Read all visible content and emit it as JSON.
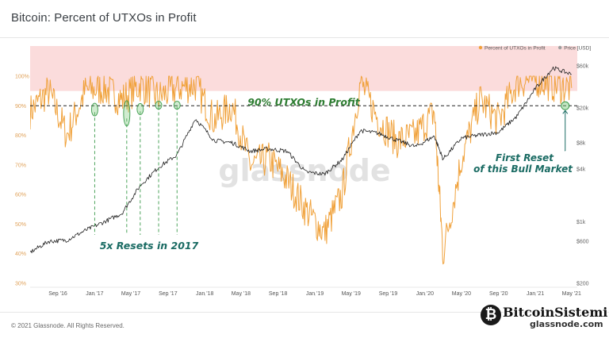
{
  "title": "Bitcoin: Percent of UTXOs in Profit",
  "copyright": "© 2021 Glassnode. All Rights Reserved.",
  "watermark": "glassnode",
  "badge": {
    "brand": "BitcoinSistemi",
    "sub": "glassnode.com",
    "icon": "bitcoin-logo-icon"
  },
  "colors": {
    "profit": "#f0a13a",
    "price": "#222222",
    "band": "#fbdcdc",
    "green": "#2e7d32",
    "teal": "#1a6b63"
  },
  "legend": [
    {
      "label": "Percent of UTXOs in Profit",
      "color": "#f0a13a"
    },
    {
      "label": "Price [USD]",
      "color": "#9e9e9e"
    }
  ],
  "annotations": {
    "threshold": "90% UTXOs in Profit",
    "resets": "5x Resets in 2017",
    "first_reset_line1": "First Reset",
    "first_reset_line2": "of this Bull Market"
  },
  "chart_data": {
    "type": "line",
    "title": "Bitcoin: Percent of UTXOs in Profit",
    "x_ticks": [
      "Sep '16",
      "Jan '17",
      "May '17",
      "Sep '17",
      "Jan '18",
      "May '18",
      "Sep '18",
      "Jan '19",
      "May '19",
      "Sep '19",
      "Jan '20",
      "May '20",
      "Sep '20",
      "Jan '21",
      "May '21"
    ],
    "y_left_ticks": [
      "30%",
      "40%",
      "50%",
      "60%",
      "70%",
      "80%",
      "90%",
      "100%"
    ],
    "y_left_range": [
      30,
      100
    ],
    "y_right_ticks": [
      "$200",
      "$600",
      "$1k",
      "$4k",
      "$8k",
      "$20k",
      "$60k"
    ],
    "y_right_scale": "log",
    "threshold_line": 90,
    "highlight_band": [
      95,
      100
    ],
    "legend_position": "top-right",
    "series": [
      {
        "name": "Percent of UTXOs in Profit",
        "axis": "left",
        "x": [
          "2016-06",
          "2016-08",
          "2016-10",
          "2016-12",
          "2017-02",
          "2017-04",
          "2017-06",
          "2017-08",
          "2017-10",
          "2017-12",
          "2018-02",
          "2018-04",
          "2018-06",
          "2018-08",
          "2018-10",
          "2018-12",
          "2019-02",
          "2019-04",
          "2019-06",
          "2019-08",
          "2019-10",
          "2019-12",
          "2020-02",
          "2020-03",
          "2020-05",
          "2020-07",
          "2020-09",
          "2020-11",
          "2021-01",
          "2021-03",
          "2021-05"
        ],
        "values": [
          88,
          95,
          80,
          95,
          96,
          92,
          97,
          93,
          96,
          97,
          85,
          90,
          70,
          72,
          65,
          55,
          47,
          60,
          98,
          85,
          78,
          80,
          88,
          40,
          72,
          92,
          85,
          98,
          99,
          97,
          96
        ]
      },
      {
        "name": "Price [USD]",
        "axis": "right",
        "x": [
          "2016-06",
          "2016-08",
          "2016-10",
          "2016-12",
          "2017-02",
          "2017-04",
          "2017-06",
          "2017-08",
          "2017-10",
          "2017-12",
          "2018-02",
          "2018-04",
          "2018-06",
          "2018-08",
          "2018-10",
          "2018-12",
          "2019-02",
          "2019-04",
          "2019-06",
          "2019-08",
          "2019-10",
          "2019-12",
          "2020-02",
          "2020-03",
          "2020-05",
          "2020-07",
          "2020-09",
          "2020-11",
          "2021-01",
          "2021-03",
          "2021-05"
        ],
        "values": [
          450,
          600,
          620,
          800,
          1000,
          1250,
          2600,
          4200,
          5800,
          15000,
          8500,
          8000,
          6400,
          6800,
          6400,
          3700,
          3500,
          5100,
          11000,
          10200,
          8500,
          7200,
          9500,
          5200,
          9000,
          9800,
          10500,
          16000,
          33000,
          57000,
          48000
        ]
      }
    ],
    "resets_2017": [
      {
        "x": "2017-01",
        "y": 90
      },
      {
        "x": "2017-03",
        "y": 90
      },
      {
        "x": "2017-06",
        "y": 90
      },
      {
        "x": "2017-08",
        "y": 91
      },
      {
        "x": "2017-10",
        "y": 91
      }
    ],
    "first_reset_bull_market": {
      "x": "2021-05",
      "y": 90
    }
  }
}
